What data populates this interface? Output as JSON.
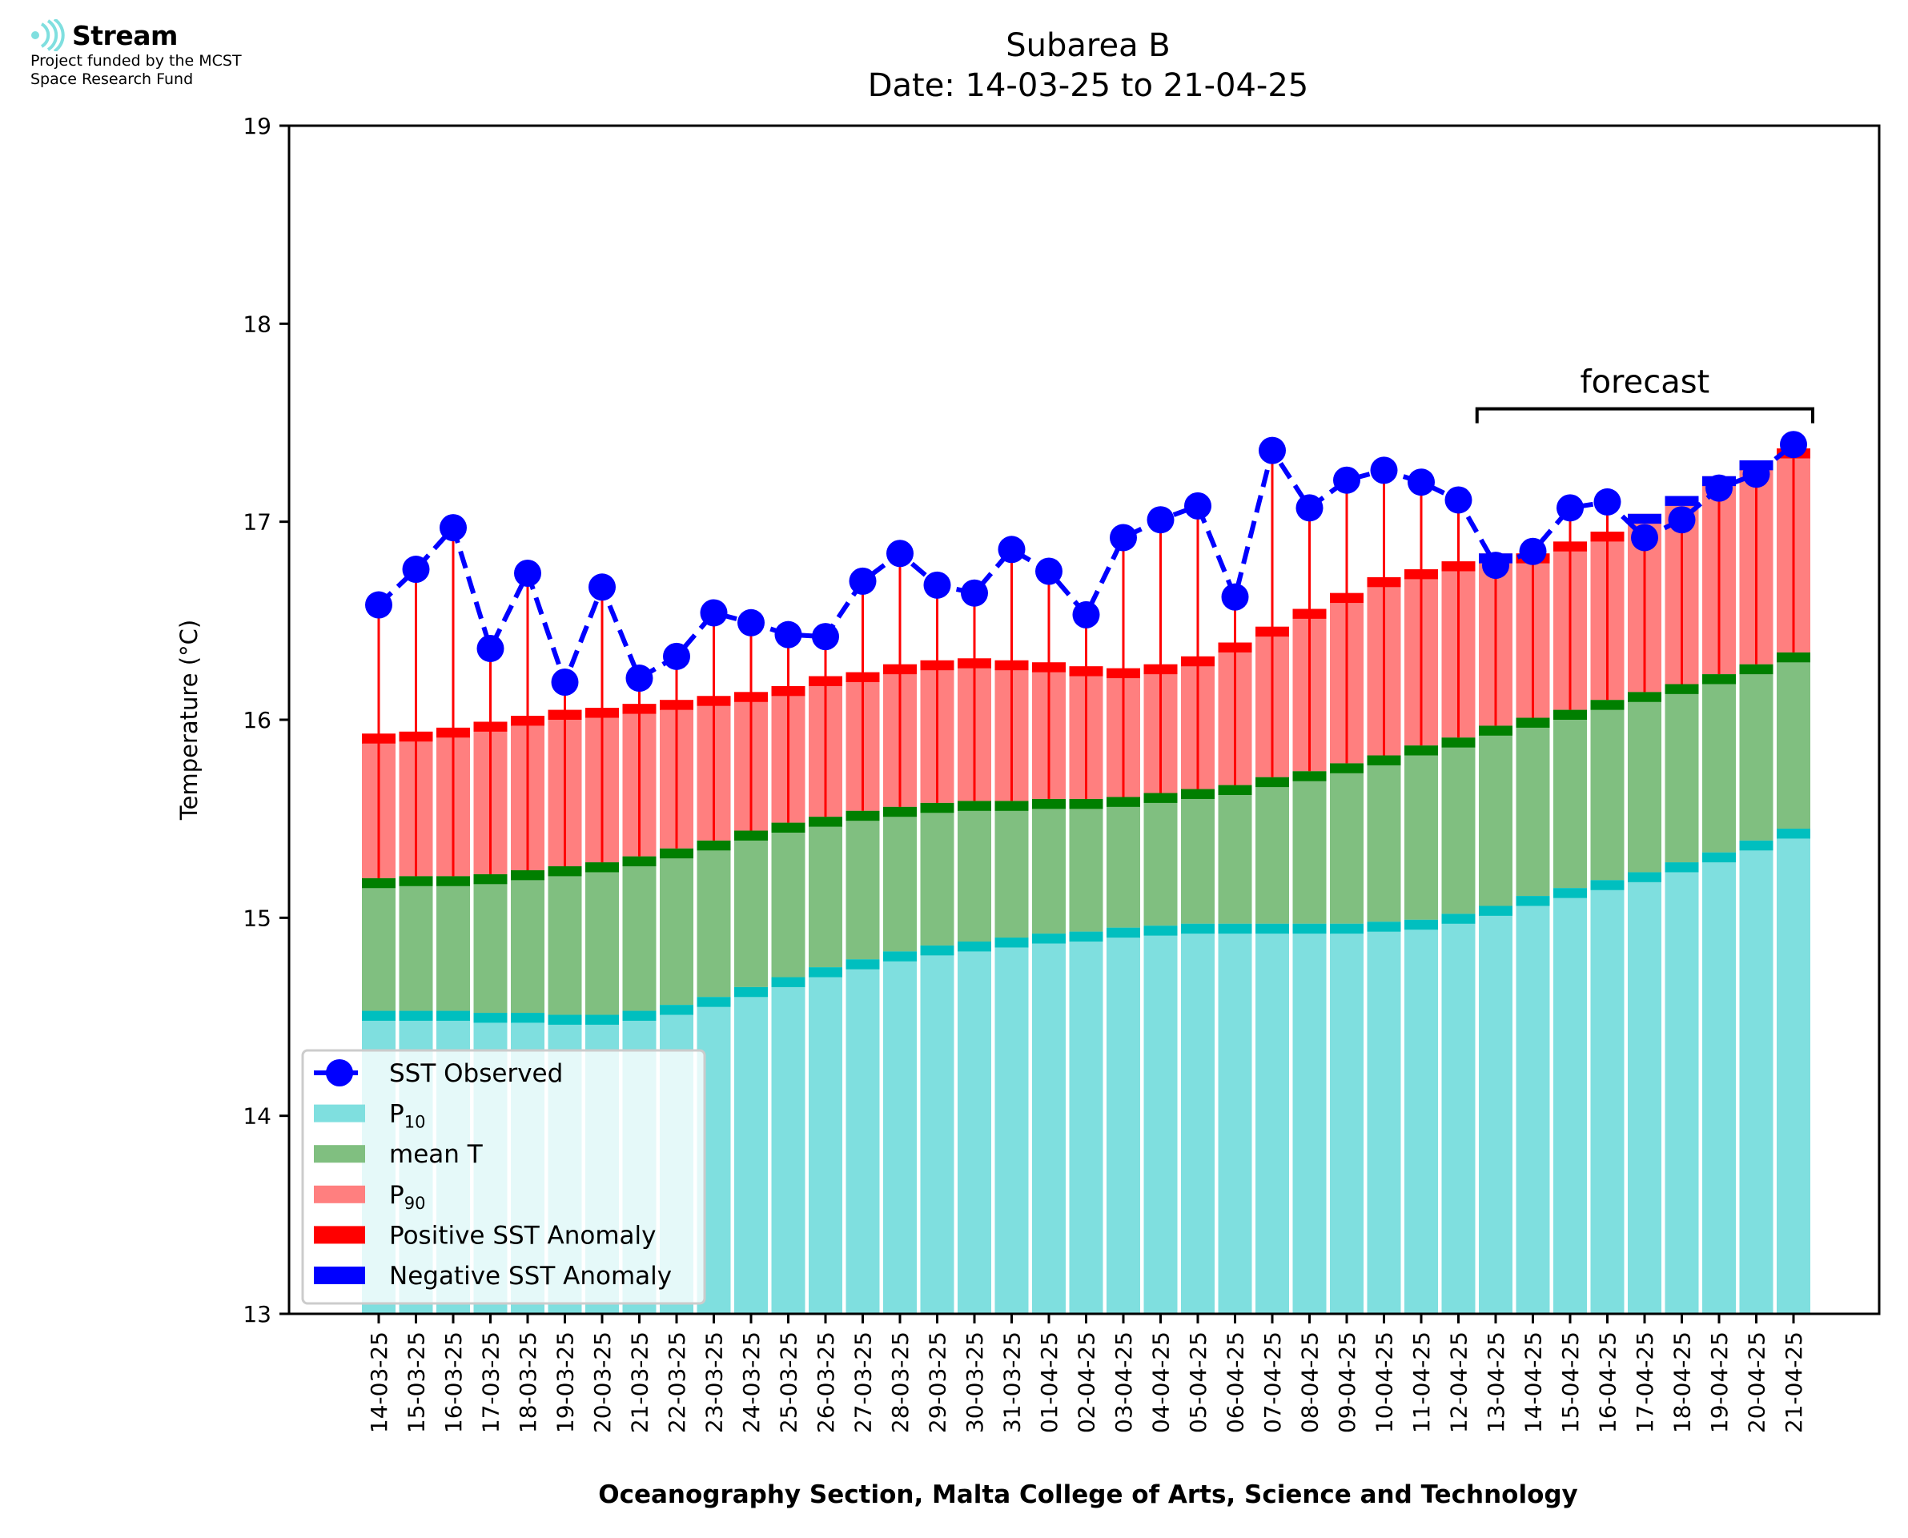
{
  "logo": {
    "name": "Stream",
    "funding_line1": "Project funded by the MCST",
    "funding_line2": "Space Research Fund"
  },
  "colors": {
    "p10": "#7fdfdf",
    "p10_band": "#00bfbf",
    "mean": "#80bf80",
    "mean_band": "#007f00",
    "p90": "#ff7f7f",
    "anomaly_pos": "#ff0000",
    "anomaly_neg": "#0000ff",
    "sst": "#0000ff"
  },
  "chart_data": {
    "type": "bar",
    "title": "Subarea B",
    "subtitle": "Date: 14-03-25 to 21-04-25",
    "xlabel": "Oceanography Section, Malta College of Arts, Science and Technology",
    "ylabel": "Temperature (°C)",
    "ylim": [
      13,
      19
    ],
    "yticks": [
      13,
      14,
      15,
      16,
      17,
      18,
      19
    ],
    "grid": false,
    "legend_position": "bottom-left",
    "annotation": "forecast",
    "forecast_range": [
      "13-04-25",
      "21-04-25"
    ],
    "legend": [
      {
        "label": "SST Observed",
        "kind": "line-marker"
      },
      {
        "label": "P",
        "sub": "10",
        "kind": "p10"
      },
      {
        "label": "mean T",
        "kind": "mean"
      },
      {
        "label": "P",
        "sub": "90",
        "kind": "p90"
      },
      {
        "label": "Positive SST Anomaly",
        "kind": "pos"
      },
      {
        "label": "Negative SST Anomaly",
        "kind": "neg"
      }
    ],
    "categories": [
      "14-03-25",
      "15-03-25",
      "16-03-25",
      "17-03-25",
      "18-03-25",
      "19-03-25",
      "20-03-25",
      "21-03-25",
      "22-03-25",
      "23-03-25",
      "24-03-25",
      "25-03-25",
      "26-03-25",
      "27-03-25",
      "28-03-25",
      "29-03-25",
      "30-03-25",
      "31-03-25",
      "01-04-25",
      "02-04-25",
      "03-04-25",
      "04-04-25",
      "05-04-25",
      "06-04-25",
      "07-04-25",
      "08-04-25",
      "09-04-25",
      "10-04-25",
      "11-04-25",
      "12-04-25",
      "13-04-25",
      "14-04-25",
      "15-04-25",
      "16-04-25",
      "17-04-25",
      "18-04-25",
      "19-04-25",
      "20-04-25",
      "21-04-25"
    ],
    "series": [
      {
        "name": "P10",
        "values": [
          14.53,
          14.53,
          14.53,
          14.52,
          14.52,
          14.51,
          14.51,
          14.53,
          14.56,
          14.6,
          14.65,
          14.7,
          14.75,
          14.79,
          14.83,
          14.86,
          14.88,
          14.9,
          14.92,
          14.93,
          14.95,
          14.96,
          14.97,
          14.97,
          14.97,
          14.97,
          14.97,
          14.98,
          14.99,
          15.02,
          15.06,
          15.11,
          15.15,
          15.19,
          15.23,
          15.28,
          15.33,
          15.39,
          15.45
        ]
      },
      {
        "name": "mean T",
        "values": [
          15.2,
          15.21,
          15.21,
          15.22,
          15.24,
          15.26,
          15.28,
          15.31,
          15.35,
          15.39,
          15.44,
          15.48,
          15.51,
          15.54,
          15.56,
          15.58,
          15.59,
          15.59,
          15.6,
          15.6,
          15.61,
          15.63,
          15.65,
          15.67,
          15.71,
          15.74,
          15.78,
          15.82,
          15.87,
          15.91,
          15.97,
          16.01,
          16.05,
          16.1,
          16.14,
          16.18,
          16.23,
          16.28,
          16.34
        ]
      },
      {
        "name": "P90",
        "values": [
          15.93,
          15.94,
          15.96,
          15.99,
          16.02,
          16.05,
          16.06,
          16.08,
          16.1,
          16.12,
          16.14,
          16.17,
          16.22,
          16.24,
          16.28,
          16.3,
          16.31,
          16.3,
          16.29,
          16.27,
          16.26,
          16.28,
          16.32,
          16.39,
          16.47,
          16.56,
          16.64,
          16.72,
          16.76,
          16.8,
          16.84,
          16.84,
          16.9,
          16.95,
          17.04,
          17.13,
          17.23,
          17.31,
          17.37
        ]
      },
      {
        "name": "SST Observed",
        "values": [
          16.58,
          16.76,
          16.97,
          16.36,
          16.74,
          16.19,
          16.67,
          16.21,
          16.32,
          16.54,
          16.49,
          16.43,
          16.42,
          16.7,
          16.84,
          16.68,
          16.64,
          16.86,
          16.75,
          16.53,
          16.92,
          17.01,
          17.08,
          16.62,
          17.36,
          17.07,
          17.21,
          17.26,
          17.2,
          17.11,
          16.78,
          16.85,
          17.07,
          17.1,
          16.92,
          17.01,
          17.17,
          17.24,
          17.39
        ]
      }
    ]
  }
}
